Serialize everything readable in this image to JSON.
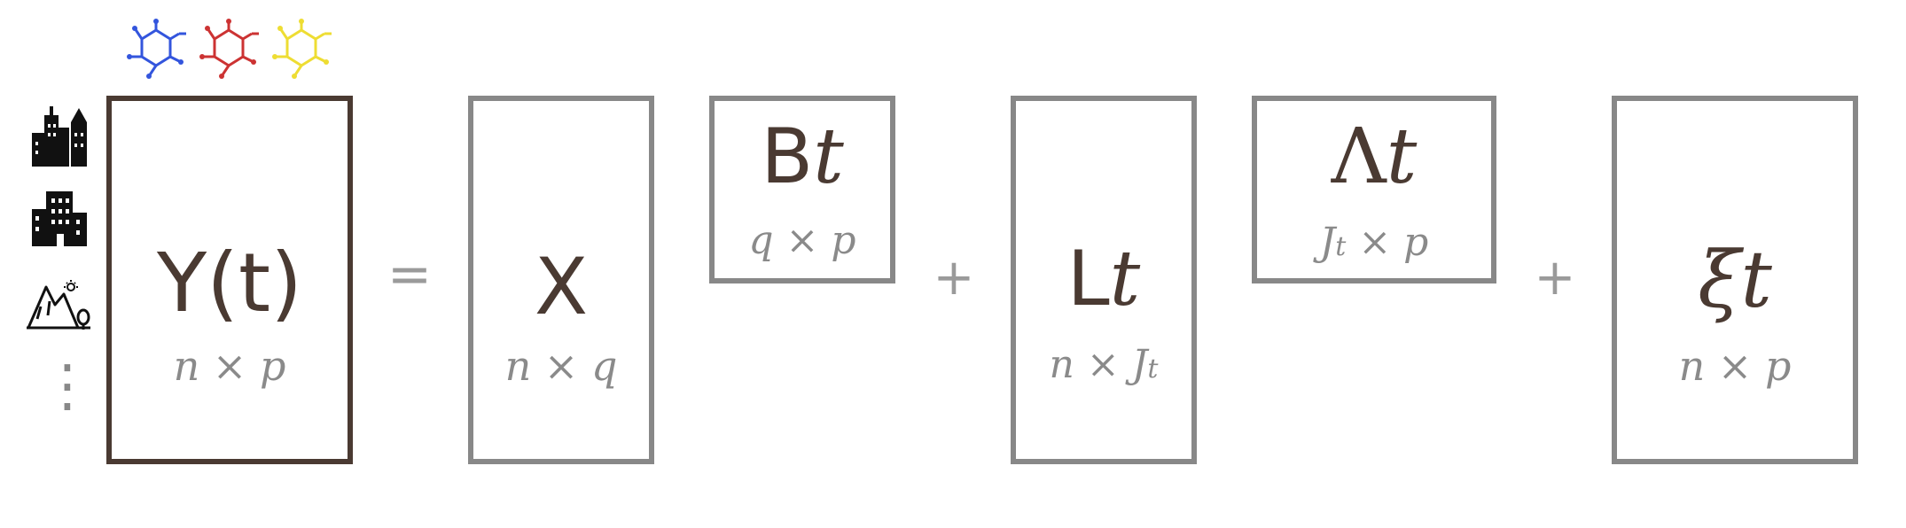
{
  "equation": {
    "lhs": {
      "symbol": "Y(t)",
      "dims": "n × p"
    },
    "equals": "=",
    "x": {
      "symbol": "X",
      "dims": "n × q"
    },
    "b": {
      "symbol": "B",
      "sub": "t",
      "dims": "q × p"
    },
    "plus1": "+",
    "l": {
      "symbol": "L",
      "sub": "t",
      "dims": "n × J",
      "dims_sub": "t"
    },
    "lambda": {
      "symbol": "Λ",
      "sub": "t",
      "dims_pre": "J",
      "dims_pre_sub": "t",
      "dims_post": " × p"
    },
    "plus2": "+",
    "xi": {
      "symbol": "ξ",
      "sub": "t",
      "dims": "n × p"
    }
  },
  "row_markers": {
    "ellipsis": "⋮"
  },
  "column_icons": [
    {
      "name": "molecule-blue",
      "color": "#3355dd"
    },
    {
      "name": "molecule-red",
      "color": "#cc3333"
    },
    {
      "name": "molecule-yellow",
      "color": "#eedd33"
    }
  ],
  "row_icons": [
    "city-skyline-icon",
    "office-building-icon",
    "mountain-landscape-icon"
  ],
  "colors": {
    "main_border": "#4a3a32",
    "grey_border": "#888888",
    "symbol": "#4a3a32",
    "dims": "#8a8a8a"
  }
}
